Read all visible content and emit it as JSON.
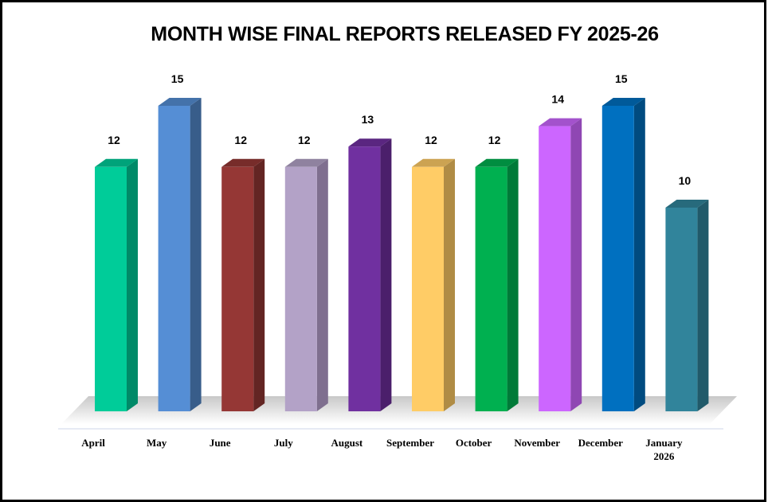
{
  "chart_data": {
    "type": "bar",
    "title": "MONTH WISE FINAL REPORTS RELEASED FY 2025-26",
    "categories": [
      "April",
      "May",
      "June",
      "July",
      "August",
      "September",
      "October",
      "November",
      "December",
      "January 2026"
    ],
    "values": [
      12,
      15,
      12,
      12,
      13,
      12,
      12,
      14,
      15,
      10
    ],
    "xlabel": "",
    "ylabel": "",
    "ylim": [
      0,
      15
    ],
    "grid": false,
    "legend": "none",
    "colors": [
      "#00CC99",
      "#558ED5",
      "#953735",
      "#B3A2C7",
      "#7030A0",
      "#FFCC66",
      "#00B050",
      "#CC66FF",
      "#0070C0",
      "#31849B"
    ],
    "side_colors": [
      "#008A68",
      "#385D8A",
      "#632523",
      "#7F6F8F",
      "#4B1F6B",
      "#B08C45",
      "#007A38",
      "#8F47B3",
      "#004B80",
      "#215A6A"
    ]
  }
}
